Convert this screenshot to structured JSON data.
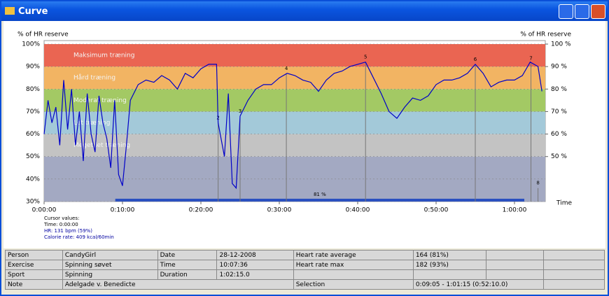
{
  "window": {
    "title": "Curve"
  },
  "chart_data": {
    "type": "line",
    "y_label": "% of HR reserve",
    "y2_label": "% of HR reserve",
    "x_label": "Time",
    "xlim": [
      0,
      63.93
    ],
    "xticks": [
      {
        "value": 0,
        "label": "0:00:00"
      },
      {
        "value": 10,
        "label": "0:10:00"
      },
      {
        "value": 20,
        "label": "0:20:00"
      },
      {
        "value": 30,
        "label": "0:30:00"
      },
      {
        "value": 40,
        "label": "0:40:00"
      },
      {
        "value": 50,
        "label": "0:50:00"
      },
      {
        "value": 60,
        "label": "1:00:00"
      }
    ],
    "ylim": [
      30,
      100
    ],
    "yticks": [
      {
        "value": 30,
        "label": "30%"
      },
      {
        "value": 40,
        "label": "40%"
      },
      {
        "value": 50,
        "label": "50%"
      },
      {
        "value": 60,
        "label": "60%"
      },
      {
        "value": 70,
        "label": "70%"
      },
      {
        "value": 80,
        "label": "80%"
      },
      {
        "value": 90,
        "label": "90%"
      },
      {
        "value": 100,
        "label": "100%"
      }
    ],
    "y2lim": [
      30,
      100
    ],
    "y2ticks": [
      {
        "value": 50,
        "label": "50 %"
      },
      {
        "value": 60,
        "label": "60 %"
      },
      {
        "value": 70,
        "label": "70 %"
      },
      {
        "value": 80,
        "label": "80 %"
      },
      {
        "value": 90,
        "label": "90 %"
      },
      {
        "value": 100,
        "label": "100 %"
      }
    ],
    "grid": true,
    "zones": [
      {
        "from": 30,
        "to": 50,
        "color": "#a3a9c2"
      },
      {
        "name": "Meget let træning",
        "from": 50,
        "to": 60,
        "color": "#c3c3c3"
      },
      {
        "name": "Let træning",
        "from": 60,
        "to": 70,
        "color": "#a3c9d9"
      },
      {
        "name": "Moderat træning",
        "from": 70,
        "to": 80,
        "color": "#a3c964"
      },
      {
        "name": "Hård træning",
        "from": 80,
        "to": 90,
        "color": "#f2b463"
      },
      {
        "name": "Maksimum træning",
        "from": 90,
        "to": 100,
        "color": "#ea6552"
      }
    ],
    "series": [
      {
        "name": "HR",
        "color": "#0000c8",
        "x": [
          0,
          0.5,
          1,
          1.5,
          2,
          2.5,
          3,
          3.5,
          4,
          4.5,
          5,
          5.5,
          6,
          6.5,
          7,
          7.5,
          8,
          8.5,
          9,
          9.5,
          10,
          10.5,
          11,
          12,
          13,
          14,
          15,
          16,
          17,
          18,
          19,
          20,
          21,
          22,
          22.2,
          23,
          23.5,
          24,
          24.5,
          25,
          26,
          27,
          28,
          29,
          30,
          31,
          32,
          33,
          34,
          35,
          36,
          37,
          38,
          39,
          40,
          41,
          42,
          43,
          44,
          45,
          46,
          47,
          48,
          49,
          50,
          51,
          52,
          53,
          54,
          55,
          56,
          57,
          58,
          59,
          60,
          61,
          62,
          63,
          63.5
        ],
        "values": [
          60,
          75,
          65,
          72,
          55,
          84,
          62,
          80,
          55,
          70,
          48,
          78,
          60,
          52,
          77,
          65,
          58,
          45,
          75,
          42,
          37,
          55,
          75,
          82,
          84,
          83,
          86,
          84,
          80,
          87,
          85,
          89,
          91,
          91,
          65,
          50,
          78,
          38,
          36,
          68,
          75,
          80,
          82,
          82,
          85,
          87,
          86,
          84,
          83,
          79,
          84,
          87,
          88,
          90,
          91,
          92,
          85,
          78,
          70,
          67,
          72,
          76,
          75,
          77,
          82,
          84,
          84,
          85,
          87,
          91,
          87,
          81,
          83,
          84,
          84,
          86,
          92,
          90,
          79
        ]
      }
    ],
    "markers": [
      {
        "label": "2",
        "x": 22.2,
        "y": 65
      },
      {
        "label": "3",
        "x": 25,
        "y": 68
      },
      {
        "label": "4",
        "x": 30.9,
        "y": 87
      },
      {
        "label": "5",
        "x": 41,
        "y": 92
      },
      {
        "label": "6",
        "x": 55,
        "y": 91
      },
      {
        "label": "7",
        "x": 62.1,
        "y": 91.5
      },
      {
        "label": "8",
        "x": 63,
        "y": 36
      }
    ],
    "selection": {
      "from": 9.08,
      "to": 61.25,
      "label": "81 %",
      "color": "#2a50c0"
    }
  },
  "cursor_values": [
    "Cursor values:",
    "Time: 0:00:00",
    "HR: 131 bpm (59%)",
    "Calorie rate: 409 kcal/60min"
  ],
  "table": {
    "rows": [
      [
        "Person",
        "CandyGirl",
        "Date",
        "28-12-2008",
        "Heart rate average",
        "164 (81%)"
      ],
      [
        "Exercise",
        "Spinning søvet",
        "Time",
        "10:07:36",
        "Heart rate max",
        "182 (93%)"
      ],
      [
        "Sport",
        "Spinning",
        "Duration",
        "1:02:15.0"
      ],
      [
        "Note",
        "Adelgade v. Benedicte",
        "Selection",
        "0:09:05 - 1:01:15 (0:52:10.0)"
      ]
    ]
  }
}
